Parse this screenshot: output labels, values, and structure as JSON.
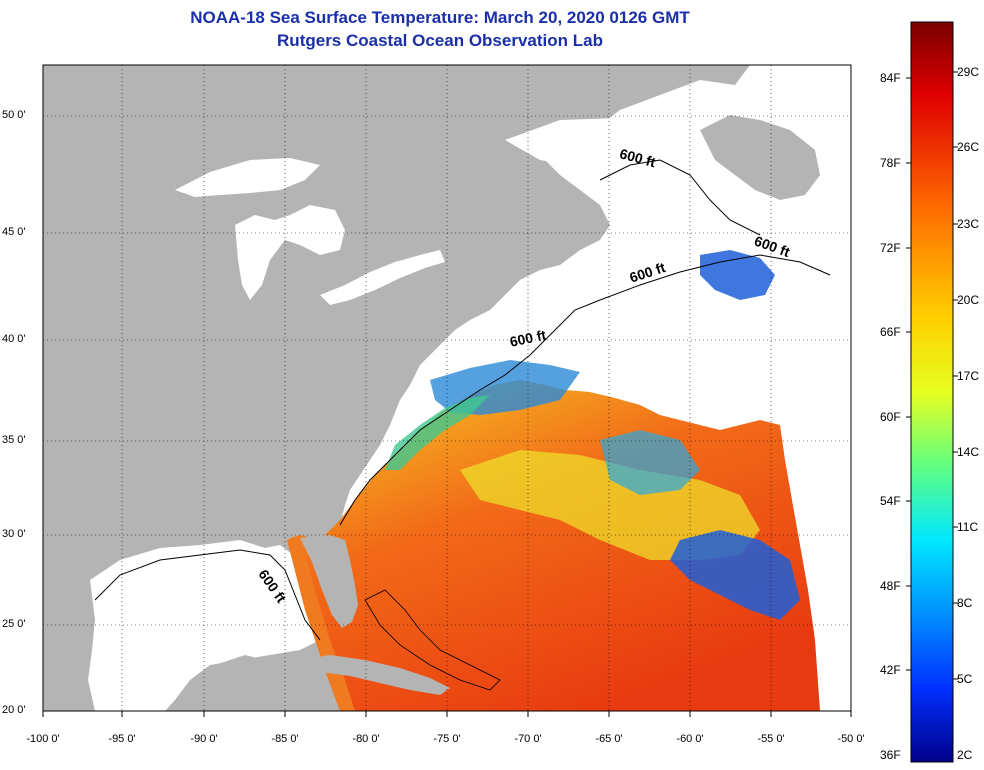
{
  "header": {
    "title": "NOAA-18 Sea Surface Temperature:  March 20, 2020 0126 GMT",
    "subtitle": "Rutgers Coastal Ocean Observation Lab"
  },
  "axes": {
    "lat_labels": [
      "50 0'",
      "45 0'",
      "40 0'",
      "35 0'",
      "30 0'",
      "25 0'",
      "20 0'"
    ],
    "lon_labels": [
      "-100 0'",
      "-95 0'",
      "-90 0'",
      "-85 0'",
      "-80 0'",
      "-75 0'",
      "-70 0'",
      "-65 0'",
      "-60 0'",
      "-55 0'",
      "-50 0'"
    ]
  },
  "contours": {
    "labels": [
      "600 ft",
      "600 ft",
      "600 ft",
      "600 ft",
      "600 ft"
    ]
  },
  "colorbar": {
    "fahrenheit": [
      "84F",
      "78F",
      "72F",
      "66F",
      "60F",
      "54F",
      "48F",
      "42F",
      "36F"
    ],
    "celsius": [
      "29C",
      "26C",
      "23C",
      "20C",
      "17C",
      "14C",
      "11C",
      "8C",
      "5C",
      "2C"
    ]
  },
  "colors": {
    "title": "#1a2fa8",
    "land": "#b4b4b4",
    "water_nodata": "#ffffff",
    "sst_warm": "#ee4a12",
    "sst_mid": "#f2d21c",
    "sst_cool": "#1e5fd8"
  }
}
